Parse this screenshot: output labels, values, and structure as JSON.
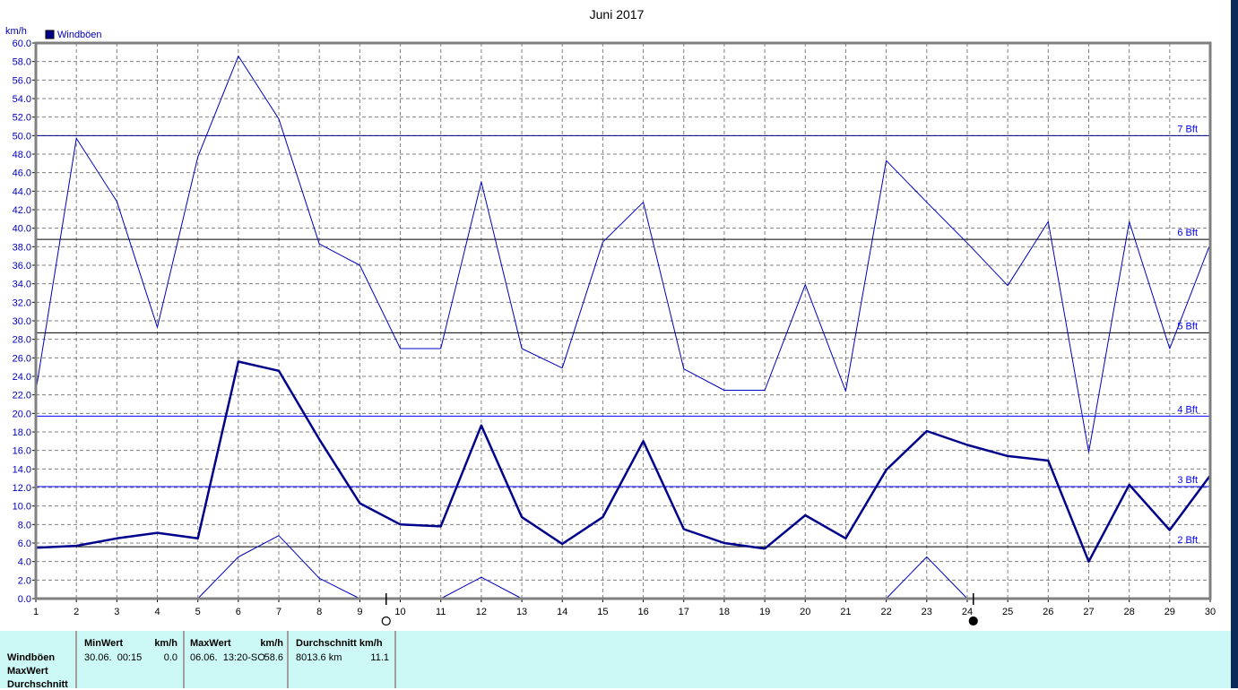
{
  "chart_data": {
    "type": "line",
    "title": "Juni 2017",
    "ylabel": "km/h",
    "ylim": [
      0,
      60
    ],
    "ytick_step": 2,
    "grid": true,
    "legend": {
      "position": "top-left",
      "entries": [
        "Windböen"
      ]
    },
    "x": [
      1,
      2,
      3,
      4,
      5,
      6,
      7,
      8,
      9,
      10,
      11,
      12,
      13,
      14,
      15,
      16,
      17,
      18,
      19,
      20,
      21,
      22,
      23,
      24,
      25,
      26,
      27,
      28,
      29,
      30
    ],
    "series": [
      {
        "role": "max",
        "color": "#0000c0",
        "width": "thin",
        "values": [
          22.4,
          49.7,
          42.9,
          29.3,
          47.7,
          58.6,
          51.8,
          38.3,
          36.0,
          27.0,
          27.0,
          45.0,
          27.0,
          24.9,
          38.5,
          42.8,
          24.8,
          22.5,
          22.5,
          33.9,
          22.4,
          47.3,
          42.8,
          38.4,
          33.8,
          40.7,
          15.8,
          40.7,
          27.0,
          38.3
        ]
      },
      {
        "role": "average",
        "color": "#00008b",
        "width": "thick",
        "values": [
          5.5,
          5.7,
          6.5,
          7.1,
          6.5,
          25.6,
          24.6,
          17.2,
          10.3,
          8.0,
          7.8,
          18.7,
          8.8,
          5.9,
          8.8,
          17.0,
          7.5,
          6.0,
          5.4,
          9.0,
          6.5,
          13.9,
          18.1,
          16.6,
          15.4,
          14.9,
          4.0,
          12.3,
          7.4,
          13.3
        ]
      },
      {
        "role": "min",
        "color": "#0000c0",
        "width": "thin",
        "values": [
          0,
          0,
          0,
          0,
          0,
          4.5,
          6.8,
          2.2,
          0,
          null,
          0,
          2.3,
          0,
          0,
          0,
          0,
          0,
          0,
          0,
          0,
          0,
          0,
          4.5,
          0,
          0,
          0,
          0,
          0,
          0,
          0
        ]
      }
    ],
    "reference_lines": [
      {
        "label": "7 Bft",
        "value": 50.0,
        "color": "#000080"
      },
      {
        "label": "6 Bft",
        "value": 38.8,
        "color": "#000000"
      },
      {
        "label": "5 Bft",
        "value": 28.7,
        "color": "#000000"
      },
      {
        "label": "4 Bft",
        "value": 19.7,
        "color": "#0000ff"
      },
      {
        "label": "3 Bft",
        "value": 12.1,
        "color": "#0000ff"
      },
      {
        "label": "2 Bft",
        "value": 5.6,
        "color": "#000000"
      }
    ],
    "moon_phases": [
      {
        "x": 9.65,
        "phase": "full-moon"
      },
      {
        "x": 24.15,
        "phase": "new-moon"
      }
    ]
  },
  "stats": {
    "row_labels": [
      "Windböen",
      "MaxWert",
      "Durchschnitt"
    ],
    "min": {
      "header": "MinWert",
      "unit": "km/h",
      "when": "30.06.  00:15",
      "value": "0.0"
    },
    "max": {
      "header": "MaxWert",
      "unit": "km/h",
      "when": "06.06.  13:20-SO",
      "value": "58.6"
    },
    "avg": {
      "header": "Durchschnitt km/h",
      "distance": "8013.6 km",
      "value": "11.1"
    }
  }
}
